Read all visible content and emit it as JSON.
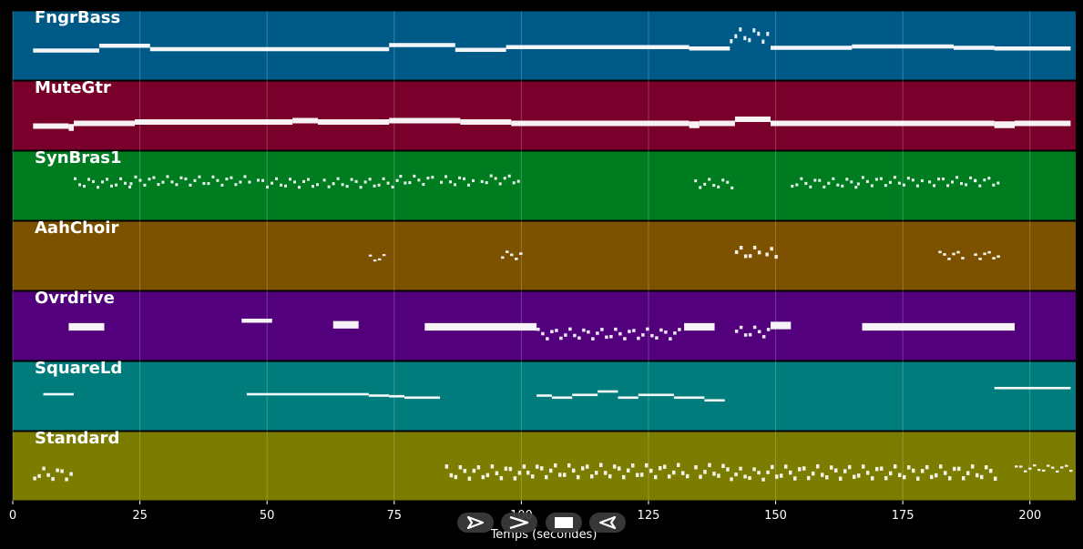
{
  "colors": {
    "background": "#000000",
    "grid": "#ffffff",
    "note": "#ffffff"
  },
  "icons": [
    "back-icon",
    "forward-icon",
    "pan-icon",
    "stop-icon",
    "rewind-icon"
  ],
  "axis": {
    "xlabel": "Temps (secondes)",
    "ticks": [
      "0",
      "25",
      "50",
      "75",
      "100",
      "125",
      "150",
      "175",
      "200"
    ]
  },
  "chart_data": {
    "type": "scatter",
    "xlabel": "Temps (secondes)",
    "xlim": [
      0,
      209
    ],
    "x_ticks": [
      0,
      25,
      50,
      75,
      100,
      125,
      150,
      175,
      200
    ],
    "grid": true,
    "tracks": [
      {
        "name": "FngrBass",
        "color": "#005a87",
        "notes": [
          [
            4,
            17,
            0.42,
            1,
            0.12
          ],
          [
            17,
            27,
            0.49,
            1,
            0.12
          ],
          [
            27,
            74,
            0.44,
            1,
            0.12
          ],
          [
            74,
            87,
            0.5,
            1,
            0.12
          ],
          [
            87,
            97,
            0.43,
            1,
            0.12
          ],
          [
            97,
            133,
            0.47,
            1,
            0.12
          ],
          [
            133,
            141,
            0.45,
            1,
            0.12
          ],
          [
            141,
            149,
            0.62,
            0.6,
            0.2
          ],
          [
            149,
            165,
            0.46,
            1,
            0.12
          ],
          [
            165,
            185,
            0.48,
            1,
            0.12
          ],
          [
            185,
            193,
            0.46,
            1,
            0.12
          ],
          [
            193,
            197,
            0.45,
            1,
            0.12
          ],
          [
            197,
            208,
            0.45,
            1,
            0.12
          ]
        ]
      },
      {
        "name": "MuteGtr",
        "color": "#78002a",
        "notes": [
          [
            4,
            11,
            0.34,
            1,
            0.16
          ],
          [
            11,
            12,
            0.32,
            1,
            0.2
          ],
          [
            12,
            24,
            0.38,
            1,
            0.16
          ],
          [
            24,
            55,
            0.4,
            1,
            0.16
          ],
          [
            55,
            60,
            0.42,
            1,
            0.16
          ],
          [
            60,
            74,
            0.4,
            1,
            0.16
          ],
          [
            74,
            88,
            0.42,
            1,
            0.16
          ],
          [
            88,
            98,
            0.4,
            1,
            0.16
          ],
          [
            98,
            133,
            0.38,
            1,
            0.16
          ],
          [
            133,
            135,
            0.36,
            1,
            0.2
          ],
          [
            135,
            142,
            0.38,
            1,
            0.16
          ],
          [
            142,
            149,
            0.44,
            1,
            0.16
          ],
          [
            149,
            185,
            0.38,
            1,
            0.16
          ],
          [
            185,
            193,
            0.38,
            1,
            0.16
          ],
          [
            193,
            197,
            0.36,
            1,
            0.2
          ],
          [
            197,
            208,
            0.38,
            1,
            0.16
          ]
        ]
      },
      {
        "name": "SynBras1",
        "color": "#007c20",
        "notes": [
          [
            12,
            23,
            0.52,
            0.6,
            0.14
          ],
          [
            23,
            47,
            0.55,
            0.6,
            0.14
          ],
          [
            48,
            60,
            0.52,
            0.6,
            0.14
          ],
          [
            61,
            76,
            0.52,
            0.6,
            0.14
          ],
          [
            76,
            83,
            0.56,
            0.6,
            0.14
          ],
          [
            84,
            91,
            0.55,
            0.6,
            0.14
          ],
          [
            92,
            100,
            0.57,
            0.6,
            0.14
          ],
          [
            134,
            142,
            0.51,
            0.6,
            0.14
          ],
          [
            153,
            166,
            0.52,
            0.6,
            0.14
          ],
          [
            166,
            179,
            0.54,
            0.6,
            0.14
          ],
          [
            180,
            189,
            0.54,
            0.6,
            0.14
          ],
          [
            189,
            194,
            0.54,
            0.6,
            0.14
          ]
        ]
      },
      {
        "name": "AahChoir",
        "color": "#7c5100",
        "notes": [
          [
            70,
            73,
            0.45,
            0.7,
            0.1
          ],
          [
            96,
            100,
            0.49,
            0.7,
            0.12
          ],
          [
            142,
            147,
            0.52,
            0.7,
            0.18
          ],
          [
            148,
            150,
            0.5,
            0.7,
            0.18
          ],
          [
            182,
            187,
            0.49,
            0.7,
            0.12
          ],
          [
            189,
            194,
            0.49,
            0.7,
            0.12
          ]
        ]
      },
      {
        "name": "Ovrdrive",
        "color": "#52007c",
        "notes": [
          [
            11,
            18,
            0.48,
            1,
            0.22
          ],
          [
            45,
            51,
            0.57,
            1,
            0.12
          ],
          [
            63,
            68,
            0.51,
            1,
            0.22
          ],
          [
            81,
            103,
            0.48,
            1,
            0.22
          ],
          [
            103,
            131,
            0.36,
            0.7,
            0.16
          ],
          [
            132,
            138,
            0.48,
            1,
            0.22
          ],
          [
            142,
            149,
            0.39,
            0.7,
            0.16
          ],
          [
            149,
            153,
            0.5,
            1,
            0.22
          ],
          [
            167,
            197,
            0.48,
            1,
            0.22
          ]
        ]
      },
      {
        "name": "SquareLd",
        "color": "#007c7c",
        "notes": [
          [
            6,
            12,
            0.52,
            1,
            0.07
          ],
          [
            46,
            70,
            0.52,
            1,
            0.07
          ],
          [
            70,
            74,
            0.5,
            1,
            0.07
          ],
          [
            74,
            77,
            0.49,
            1,
            0.07
          ],
          [
            77,
            84,
            0.47,
            1,
            0.07
          ],
          [
            103,
            106,
            0.5,
            1,
            0.07
          ],
          [
            106,
            110,
            0.47,
            1,
            0.07
          ],
          [
            110,
            115,
            0.51,
            1,
            0.07
          ],
          [
            115,
            119,
            0.56,
            1,
            0.07
          ],
          [
            119,
            123,
            0.47,
            1,
            0.07
          ],
          [
            123,
            130,
            0.51,
            1,
            0.07
          ],
          [
            130,
            136,
            0.47,
            1,
            0.07
          ],
          [
            136,
            140,
            0.43,
            1,
            0.07
          ],
          [
            193,
            208,
            0.61,
            1,
            0.07
          ]
        ]
      },
      {
        "name": "Standard",
        "color": "#7c7c00",
        "notes": [
          [
            4,
            12,
            0.36,
            0.7,
            0.18
          ],
          [
            85,
            101,
            0.38,
            0.7,
            0.2
          ],
          [
            101,
            133,
            0.4,
            0.7,
            0.2
          ],
          [
            134,
            141,
            0.4,
            0.7,
            0.2
          ],
          [
            141,
            149,
            0.36,
            0.7,
            0.18
          ],
          [
            149,
            193,
            0.38,
            0.7,
            0.2
          ],
          [
            197,
            208,
            0.45,
            0.7,
            0.1
          ]
        ]
      }
    ]
  }
}
